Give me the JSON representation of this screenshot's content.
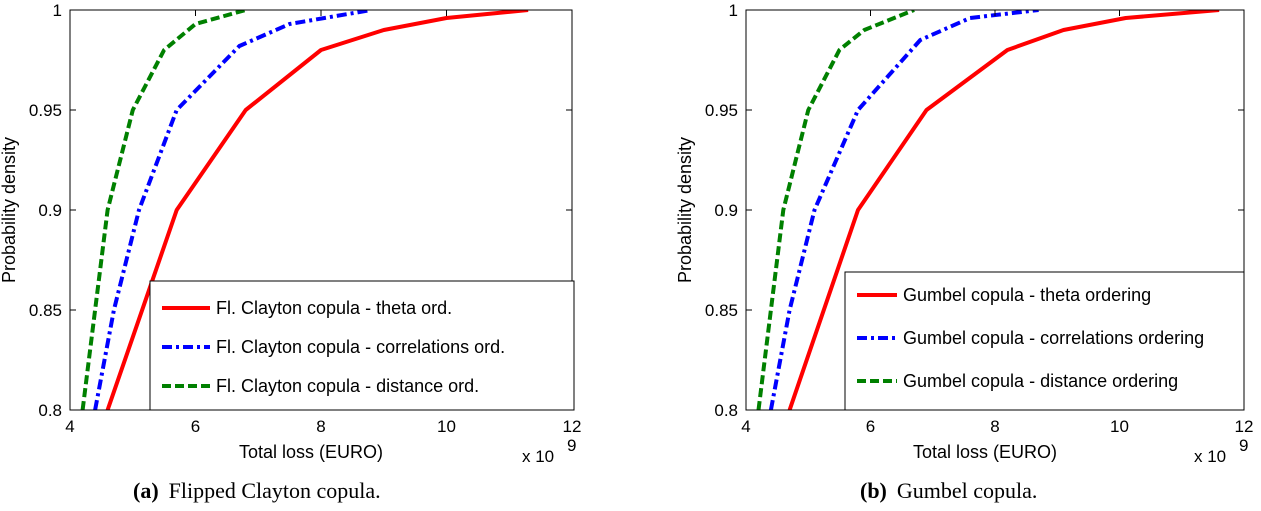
{
  "chart_data": [
    {
      "type": "line",
      "xlabel": "Total loss (EURO)",
      "ylabel": "Probability density",
      "x_scale_note": "x 10",
      "x_scale_exponent": "9",
      "xlim": [
        4,
        12
      ],
      "ylim": [
        0.8,
        1
      ],
      "xticks": [
        "4",
        "6",
        "8",
        "10",
        "12"
      ],
      "yticks": [
        "0.8",
        "0.85",
        "0.9",
        "0.95",
        "1"
      ],
      "legend_position": "lower-right",
      "caption_tag": "(a)",
      "caption_text": "Flipped Clayton copula.",
      "series": [
        {
          "name": "Fl. Clayton copula - theta ord.",
          "color": "#ff0000",
          "style": "solid",
          "points": [
            [
              4.6,
              0.8
            ],
            [
              5.7,
              0.9
            ],
            [
              6.8,
              0.95
            ],
            [
              8.0,
              0.98
            ],
            [
              9.0,
              0.99
            ],
            [
              10.0,
              0.996
            ],
            [
              11.3,
              1.0
            ]
          ]
        },
        {
          "name": "Fl. Clayton copula - correlations ord.",
          "color": "#0000ff",
          "style": "dash-dot",
          "points": [
            [
              4.4,
              0.8
            ],
            [
              4.7,
              0.85
            ],
            [
              5.1,
              0.9
            ],
            [
              5.7,
              0.95
            ],
            [
              6.7,
              0.982
            ],
            [
              7.5,
              0.993
            ],
            [
              8.8,
              1.0
            ]
          ]
        },
        {
          "name": "Fl. Clayton copula - distance ord.",
          "color": "#008000",
          "style": "dashed",
          "points": [
            [
              4.2,
              0.8
            ],
            [
              4.4,
              0.85
            ],
            [
              4.6,
              0.9
            ],
            [
              5.0,
              0.95
            ],
            [
              5.5,
              0.98
            ],
            [
              6.0,
              0.993
            ],
            [
              6.8,
              1.0
            ]
          ]
        }
      ]
    },
    {
      "type": "line",
      "xlabel": "Total loss (EURO)",
      "ylabel": "Probability density",
      "x_scale_note": "x 10",
      "x_scale_exponent": "9",
      "xlim": [
        4,
        12
      ],
      "ylim": [
        0.8,
        1
      ],
      "xticks": [
        "4",
        "6",
        "8",
        "10",
        "12"
      ],
      "yticks": [
        "0.8",
        "0.85",
        "0.9",
        "0.95",
        "1"
      ],
      "legend_position": "lower-right",
      "caption_tag": "(b)",
      "caption_text": "Gumbel copula.",
      "series": [
        {
          "name": "Gumbel copula - theta ordering",
          "color": "#ff0000",
          "style": "solid",
          "points": [
            [
              4.7,
              0.8
            ],
            [
              5.8,
              0.9
            ],
            [
              6.9,
              0.95
            ],
            [
              8.2,
              0.98
            ],
            [
              9.1,
              0.99
            ],
            [
              10.1,
              0.996
            ],
            [
              11.6,
              1.0
            ]
          ]
        },
        {
          "name": "Gumbel copula - correlations ordering",
          "color": "#0000ff",
          "style": "dash-dot",
          "points": [
            [
              4.4,
              0.8
            ],
            [
              4.7,
              0.85
            ],
            [
              5.1,
              0.9
            ],
            [
              5.8,
              0.95
            ],
            [
              6.8,
              0.985
            ],
            [
              7.6,
              0.996
            ],
            [
              8.7,
              1.0
            ]
          ]
        },
        {
          "name": "Gumbel copula - distance ordering",
          "color": "#008000",
          "style": "dashed",
          "points": [
            [
              4.2,
              0.8
            ],
            [
              4.4,
              0.85
            ],
            [
              4.6,
              0.9
            ],
            [
              5.0,
              0.95
            ],
            [
              5.5,
              0.98
            ],
            [
              5.9,
              0.99
            ],
            [
              6.7,
              1.0
            ]
          ]
        }
      ]
    }
  ]
}
